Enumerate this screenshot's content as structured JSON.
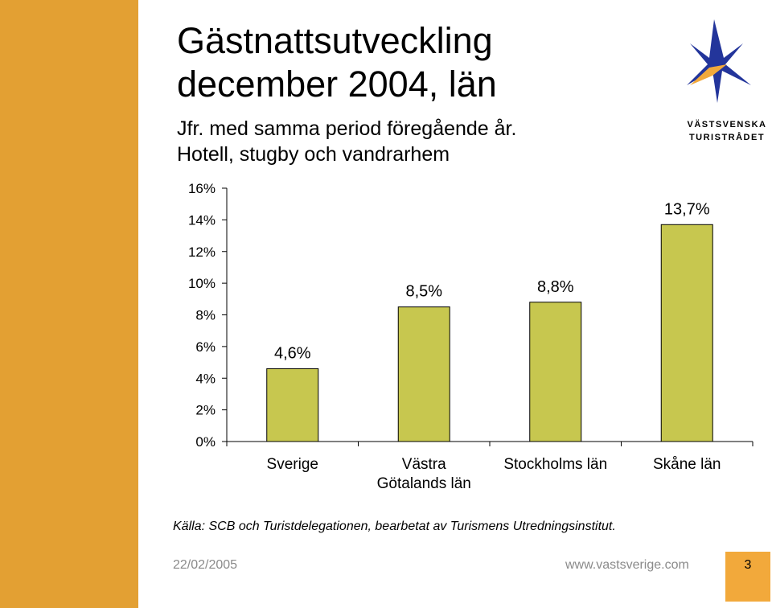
{
  "title_lines": [
    "Gästnattsutveckling",
    "december 2004, län"
  ],
  "subtitle_lines": [
    "Jfr. med samma period föregående år.",
    "Hotell, stugby och vandrarhem"
  ],
  "logo_text": [
    "VÄSTSVENSKA",
    "TURISTRÅDET"
  ],
  "source_note": "Källa: SCB och Turistdelegationen, bearbetat av Turismens Utredningsinstitut.",
  "footer": {
    "date": "22/02/2005",
    "url": "www.vastsverige.com",
    "page_number": "3"
  },
  "colors": {
    "bar": "#C7C74F",
    "accent_left": "#E3A033",
    "page_box": "#F2A93B"
  },
  "chart_data": {
    "type": "bar",
    "categories": [
      [
        "Sverige"
      ],
      [
        "Västra",
        "Götalands län"
      ],
      [
        "Stockholms län"
      ],
      [
        "Skåne län"
      ]
    ],
    "values": [
      4.6,
      8.5,
      8.8,
      13.7
    ],
    "data_labels": [
      "4,6%",
      "8,5%",
      "8,8%",
      "13,7%"
    ],
    "y_ticks": [
      0,
      2,
      4,
      6,
      8,
      10,
      12,
      14,
      16
    ],
    "y_tick_labels": [
      "0%",
      "2%",
      "4%",
      "6%",
      "8%",
      "10%",
      "12%",
      "14%",
      "16%"
    ],
    "ylim": [
      0,
      16
    ],
    "grid": false,
    "legend": "none"
  }
}
